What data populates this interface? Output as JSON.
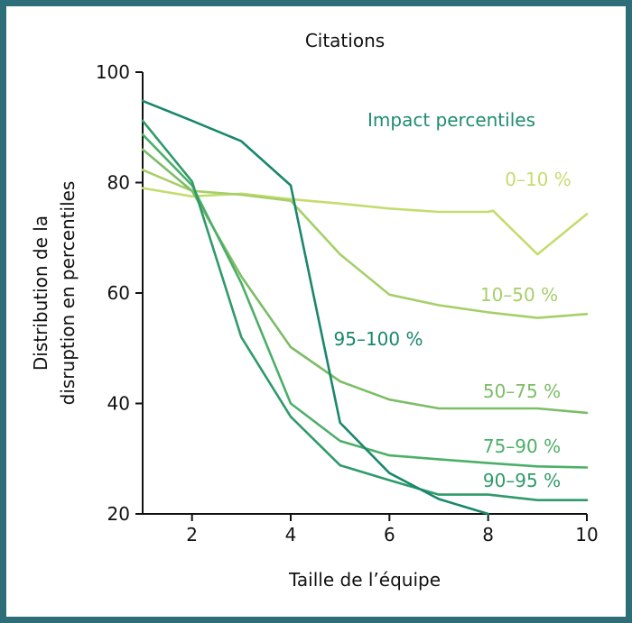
{
  "chart_data": {
    "type": "line",
    "title": "Citations",
    "xlabel": "Taille de l’équipe",
    "ylabel_lines": [
      "Distribution de la",
      "disruption en percentiles"
    ],
    "xlim": [
      1,
      10
    ],
    "ylim": [
      20,
      100
    ],
    "x_ticks": [
      2,
      4,
      6,
      8,
      10
    ],
    "y_ticks": [
      20,
      40,
      60,
      80,
      100
    ],
    "grid": false,
    "legend_title": "Impact percentiles",
    "legend_title_color": "#1f8c6c",
    "series": [
      {
        "name": "0–10 %",
        "color": "#c4dc6f",
        "x": [
          1,
          2,
          3,
          4,
          5,
          6,
          7,
          8,
          8.1,
          9,
          10
        ],
        "y": [
          79,
          77.5,
          78,
          77,
          76.2,
          75.3,
          74.7,
          74.7,
          74.9,
          67,
          74.3
        ]
      },
      {
        "name": "10–50 %",
        "color": "#a6cf6a",
        "x": [
          1,
          2,
          3,
          4,
          5,
          6,
          7,
          8,
          9,
          10
        ],
        "y": [
          82.3,
          78.5,
          77.8,
          76.7,
          67,
          59.7,
          57.8,
          56.5,
          55.5,
          56.2
        ]
      },
      {
        "name": "50–75 %",
        "color": "#7cbd66",
        "x": [
          1,
          2,
          3,
          4,
          5,
          6,
          7,
          8,
          9,
          10
        ],
        "y": [
          86,
          78.5,
          63,
          50.2,
          44,
          40.7,
          39.1,
          39.1,
          39.1,
          38.3
        ]
      },
      {
        "name": "75–90 %",
        "color": "#4caf68",
        "x": [
          1,
          2,
          3,
          4,
          5,
          6,
          7,
          8,
          9,
          10
        ],
        "y": [
          88.7,
          79.5,
          61.8,
          40,
          33.2,
          30.6,
          29.9,
          29.2,
          28.6,
          28.4
        ]
      },
      {
        "name": "90–95 %",
        "color": "#2f9a6a",
        "x": [
          1,
          2,
          3,
          4,
          5,
          6,
          7,
          8,
          9,
          10
        ],
        "y": [
          91.2,
          80.2,
          52,
          37.6,
          28.8,
          26.1,
          23.5,
          23.5,
          22.5,
          22.5
        ]
      },
      {
        "name": "95–100 %",
        "color": "#1a876c",
        "x": [
          1,
          2,
          3,
          4,
          5,
          6,
          7,
          8
        ],
        "y": [
          94.8,
          91.2,
          87.5,
          79.5,
          36.5,
          27.4,
          22.7,
          20
        ]
      }
    ]
  }
}
